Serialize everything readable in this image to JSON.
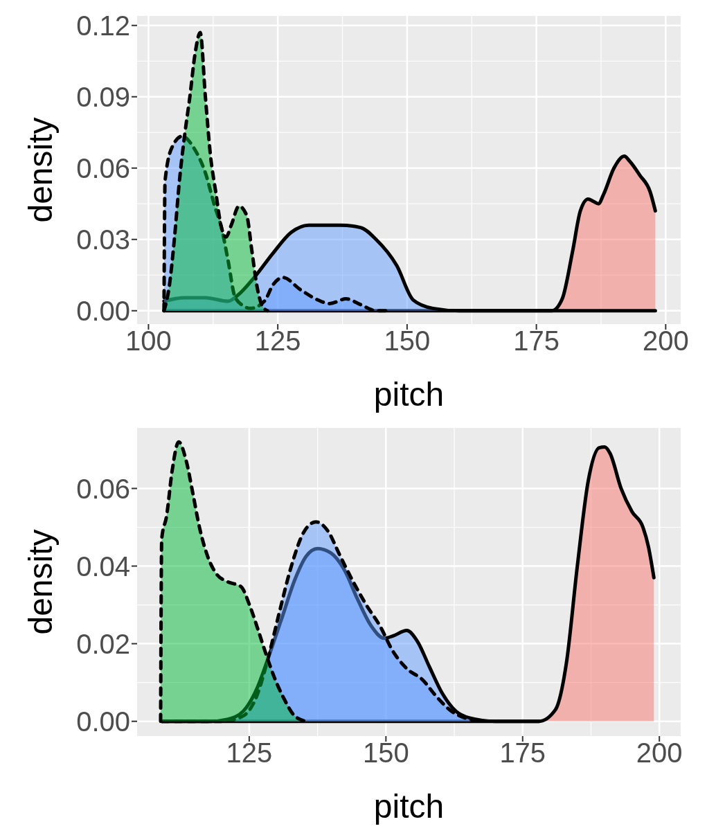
{
  "chart_data": [
    {
      "type": "area",
      "xlabel": "pitch",
      "ylabel": "density",
      "xlim": [
        97.8,
        202.9
      ],
      "ylim": [
        -0.0056,
        0.124
      ],
      "xticks": [
        100,
        125,
        150,
        175,
        200
      ],
      "yticks": [
        {
          "value": 0,
          "label": "0.00"
        },
        {
          "value": 0.03,
          "label": "0.03"
        },
        {
          "value": 0.06,
          "label": "0.06"
        },
        {
          "value": 0.09,
          "label": "0.09"
        },
        {
          "value": 0.12,
          "label": "0.12"
        }
      ],
      "grid": true,
      "series": [
        {
          "color": "#f8766d",
          "line_style": "solid",
          "x": [
            103,
            150,
            178,
            180,
            182,
            183.5,
            185,
            186,
            187,
            188,
            190,
            192,
            193,
            195,
            197,
            198
          ],
          "values": [
            0,
            0,
            0,
            0.005,
            0.025,
            0.042,
            0.047,
            0.046,
            0.045,
            0.049,
            0.06,
            0.065,
            0.063,
            0.057,
            0.05,
            0.042
          ]
        },
        {
          "color": "#619cff",
          "line_style": "solid",
          "x": [
            103,
            107,
            111,
            115.4,
            117.2,
            120.6,
            124,
            127.6,
            131,
            137,
            141,
            144,
            148,
            151.2,
            155,
            160,
            175,
            198
          ],
          "values": [
            0.004,
            0.0055,
            0.0055,
            0.004,
            0.0064,
            0.0144,
            0.024,
            0.033,
            0.036,
            0.036,
            0.035,
            0.03,
            0.019,
            0.0045,
            0.001,
            0,
            0,
            0
          ]
        },
        {
          "color": "#609bff",
          "line_style": "dashed",
          "x": [
            103,
            103.2,
            104.6,
            106.5,
            108.9,
            111,
            112.8,
            114.1,
            115.4,
            116.7,
            118.4,
            119.7,
            122.4,
            124.1,
            126,
            129.3,
            132.8,
            135,
            138.2,
            141,
            144,
            146
          ],
          "values": [
            0,
            0.0545,
            0.069,
            0.0734,
            0.068,
            0.058,
            0.044,
            0.035,
            0.021,
            0.006,
            0.002,
            0.001,
            0.004,
            0.011,
            0.014,
            0.009,
            0.0045,
            0.003,
            0.005,
            0.0026,
            0,
            0
          ]
        },
        {
          "color": "#00ba38",
          "line_style": "dashed",
          "x": [
            103,
            104,
            105,
            106,
            107,
            108,
            109,
            110,
            111,
            112,
            113,
            114,
            115,
            116,
            117.5,
            119,
            120,
            121,
            122,
            123
          ],
          "values": [
            0,
            0.01,
            0.03,
            0.055,
            0.074,
            0.09,
            0.108,
            0.117,
            0.09,
            0.065,
            0.05,
            0.036,
            0.031,
            0.036,
            0.044,
            0.04,
            0.025,
            0.01,
            0.002,
            0
          ]
        }
      ]
    },
    {
      "type": "area",
      "xlabel": "pitch",
      "ylabel": "density",
      "xlim": [
        104.5,
        203.9
      ],
      "ylim": [
        -0.0038,
        0.0756
      ],
      "xticks": [
        125,
        150,
        175,
        200
      ],
      "yticks": [
        {
          "value": 0,
          "label": "0.00"
        },
        {
          "value": 0.02,
          "label": "0.02"
        },
        {
          "value": 0.04,
          "label": "0.04"
        },
        {
          "value": 0.06,
          "label": "0.06"
        }
      ],
      "grid": true,
      "series": [
        {
          "color": "#f8766d",
          "line_style": "solid",
          "x": [
            109,
            150,
            178,
            181,
            183,
            185,
            187,
            189,
            190,
            191,
            193,
            195,
            197,
            198,
            199
          ],
          "values": [
            0,
            0,
            0,
            0.003,
            0.015,
            0.04,
            0.062,
            0.0705,
            0.0707,
            0.069,
            0.06,
            0.054,
            0.05,
            0.045,
            0.037
          ]
        },
        {
          "color": "#619cff",
          "line_style": "solid",
          "x": [
            109,
            118,
            121,
            123.9,
            126.4,
            128.4,
            130.9,
            133.4,
            135.4,
            137.5,
            139.9,
            142.4,
            144.8,
            147.3,
            149.7,
            151.3,
            153.8,
            155.8,
            157.9,
            160.3,
            162.8,
            165.2,
            170,
            178
          ],
          "values": [
            0,
            0,
            0.0005,
            0.0026,
            0.0084,
            0.016,
            0.0263,
            0.0367,
            0.0425,
            0.0445,
            0.0434,
            0.039,
            0.0315,
            0.0246,
            0.0214,
            0.022,
            0.0234,
            0.0205,
            0.0142,
            0.0072,
            0.0026,
            0.0009,
            0,
            0
          ]
        },
        {
          "color": "#609bff",
          "line_style": "dashed",
          "x": [
            109,
            120.2,
            123.9,
            126.4,
            128.4,
            130.5,
            132.5,
            135,
            137.2,
            139.5,
            141.5,
            144,
            146.4,
            148.9,
            151.3,
            153.8,
            156.7,
            159.1,
            162,
            164.4,
            167
          ],
          "values": [
            0,
            0,
            0.0014,
            0.0066,
            0.016,
            0.028,
            0.039,
            0.0488,
            0.0514,
            0.0488,
            0.043,
            0.036,
            0.03,
            0.0246,
            0.018,
            0.0136,
            0.0107,
            0.0066,
            0.0026,
            0.0009,
            0
          ]
        },
        {
          "color": "#00ba38",
          "line_style": "dashed",
          "x": [
            108.8,
            109,
            109.9,
            110.9,
            112.1,
            113.5,
            114.7,
            115.9,
            117.4,
            119,
            121,
            123.5,
            125.1,
            126.8,
            128,
            129.6,
            131.3,
            133.3,
            135.4
          ],
          "values": [
            0,
            0.047,
            0.053,
            0.0645,
            0.072,
            0.067,
            0.0587,
            0.05,
            0.0425,
            0.038,
            0.036,
            0.0347,
            0.0298,
            0.0228,
            0.0176,
            0.0113,
            0.006,
            0.0014,
            0
          ]
        }
      ]
    }
  ]
}
